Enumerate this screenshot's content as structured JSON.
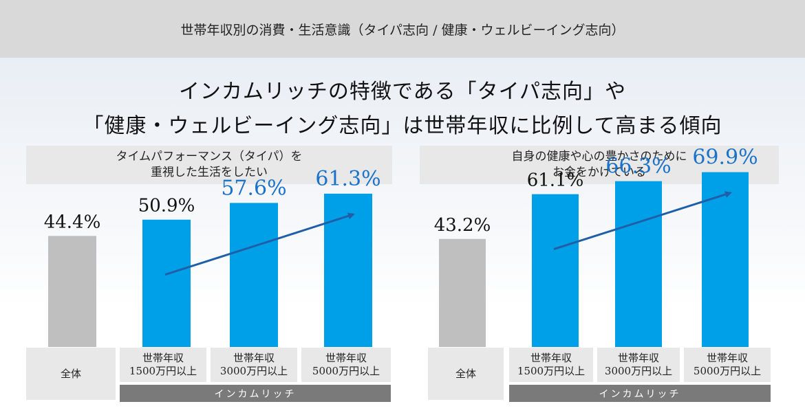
{
  "header": {
    "title": "世帯年収別の消費・生活意識（タイパ志向 / 健康・ウェルビーイング志向）"
  },
  "headline": {
    "line1": "インカムリッチの特徴である「タイパ志向」や",
    "line2": "「健康・ウェルビーイング志向」は世帯年収に比例して高まる傾向"
  },
  "colors": {
    "gray_bar": "#bfbfbf",
    "blue_bar": "#00a0e9",
    "label_blue": "#1a73c8",
    "arrow": "#1f5fa8"
  },
  "chart_data": [
    {
      "type": "bar",
      "title_line1": "タイムパフォーマンス（タイパ）を",
      "title_line2": "重視した生活をしたい",
      "categories": [
        [
          "全体"
        ],
        [
          "世帯年収",
          "1500万円以上"
        ],
        [
          "世帯年収",
          "3000万円以上"
        ],
        [
          "世帯年収",
          "5000万円以上"
        ]
      ],
      "values": [
        44.4,
        50.9,
        57.6,
        61.3
      ],
      "labels": [
        "44.4%",
        "50.9%",
        "57.6%",
        "61.3%"
      ],
      "highlight": [
        false,
        false,
        true,
        true
      ],
      "group_label": "インカムリッチ",
      "ylim": [
        0,
        100
      ],
      "trend_arrow": true
    },
    {
      "type": "bar",
      "title_line1": "自身の健康や心の豊かさのために",
      "title_line2": "お金をかけている",
      "categories": [
        [
          "全体"
        ],
        [
          "世帯年収",
          "1500万円以上"
        ],
        [
          "世帯年収",
          "3000万円以上"
        ],
        [
          "世帯年収",
          "5000万円以上"
        ]
      ],
      "values": [
        43.2,
        61.1,
        66.3,
        69.9
      ],
      "labels": [
        "43.2%",
        "61.1%",
        "66.3%",
        "69.9%"
      ],
      "highlight": [
        false,
        false,
        true,
        true
      ],
      "group_label": "インカムリッチ",
      "ylim": [
        0,
        100
      ],
      "trend_arrow": true
    }
  ]
}
